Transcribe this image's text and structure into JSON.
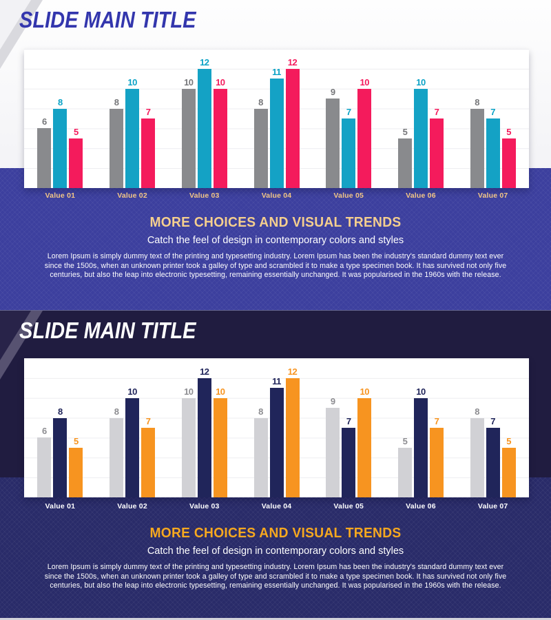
{
  "slide_light": {
    "title": "SLIDE MAIN TITLE",
    "heading": "MORE CHOICES AND VISUAL TRENDS",
    "subtitle": "Catch the feel of design in contemporary colors and styles",
    "body": "Lorem Ipsum is simply dummy text of the printing and typesetting industry. Lorem Ipsum has been the industry's standard dummy text ever since the 1500s, when an unknown printer took a galley of type and scrambled it to make a type specimen book. It has survived not only five centuries, but also the leap into electronic typesetting, remaining essentially unchanged. It was popularised in the 1960s with the release.",
    "colors": {
      "title": "#3336ad",
      "band": "#3c3f9e",
      "heading": "#f5cf8e",
      "category_labels": "#f2c685"
    }
  },
  "slide_dark": {
    "title": "SLIDE MAIN TITLE",
    "heading": "MORE CHOICES AND VISUAL TRENDS",
    "subtitle": "Catch the feel of design in contemporary colors and styles",
    "body": "Lorem Ipsum is simply dummy text of the printing and typesetting industry. Lorem Ipsum has been the industry's standard dummy text ever since the 1500s, when an unknown printer took a galley of type and scrambled it to make a type specimen book. It has survived not only five centuries, but also the leap into electronic typesetting, remaining essentially unchanged. It was popularised in the 1960s with the release.",
    "colors": {
      "title": "#ffffff",
      "background": "#201c40",
      "band": "#292b69",
      "heading": "#f6a81f",
      "category_labels": "#ffffff"
    }
  },
  "chart_data": [
    {
      "type": "bar",
      "categories": [
        "Value 01",
        "Value 02",
        "Value 03",
        "Value 04",
        "Value 05",
        "Value 06",
        "Value 07"
      ],
      "series": [
        {
          "color": "#898a8d",
          "label_color": "#76777a",
          "values": [
            6,
            8,
            10,
            8,
            9,
            5,
            8
          ]
        },
        {
          "color": "#14a2c5",
          "label_color": "#0aa2c6",
          "values": [
            8,
            10,
            12,
            11,
            7,
            10,
            7
          ]
        },
        {
          "color": "#f41b5c",
          "label_color": "#f41b5c",
          "values": [
            5,
            7,
            10,
            12,
            10,
            7,
            5
          ]
        }
      ],
      "ylim": [
        0,
        14
      ],
      "grid": true,
      "value_labels": true,
      "legend": false,
      "category_color": "#f2c685"
    },
    {
      "type": "bar",
      "categories": [
        "Value 01",
        "Value 02",
        "Value 03",
        "Value 04",
        "Value 05",
        "Value 06",
        "Value 07"
      ],
      "series": [
        {
          "color": "#d1d1d5",
          "label_color": "#8d8d91",
          "values": [
            6,
            8,
            10,
            8,
            9,
            5,
            8
          ]
        },
        {
          "color": "#20255a",
          "label_color": "#20255a",
          "values": [
            8,
            10,
            12,
            11,
            7,
            10,
            7
          ]
        },
        {
          "color": "#f79420",
          "label_color": "#f79420",
          "values": [
            5,
            7,
            10,
            12,
            10,
            7,
            5
          ]
        }
      ],
      "ylim": [
        0,
        14
      ],
      "grid": true,
      "value_labels": true,
      "legend": false,
      "category_color": "#ffffff"
    }
  ]
}
